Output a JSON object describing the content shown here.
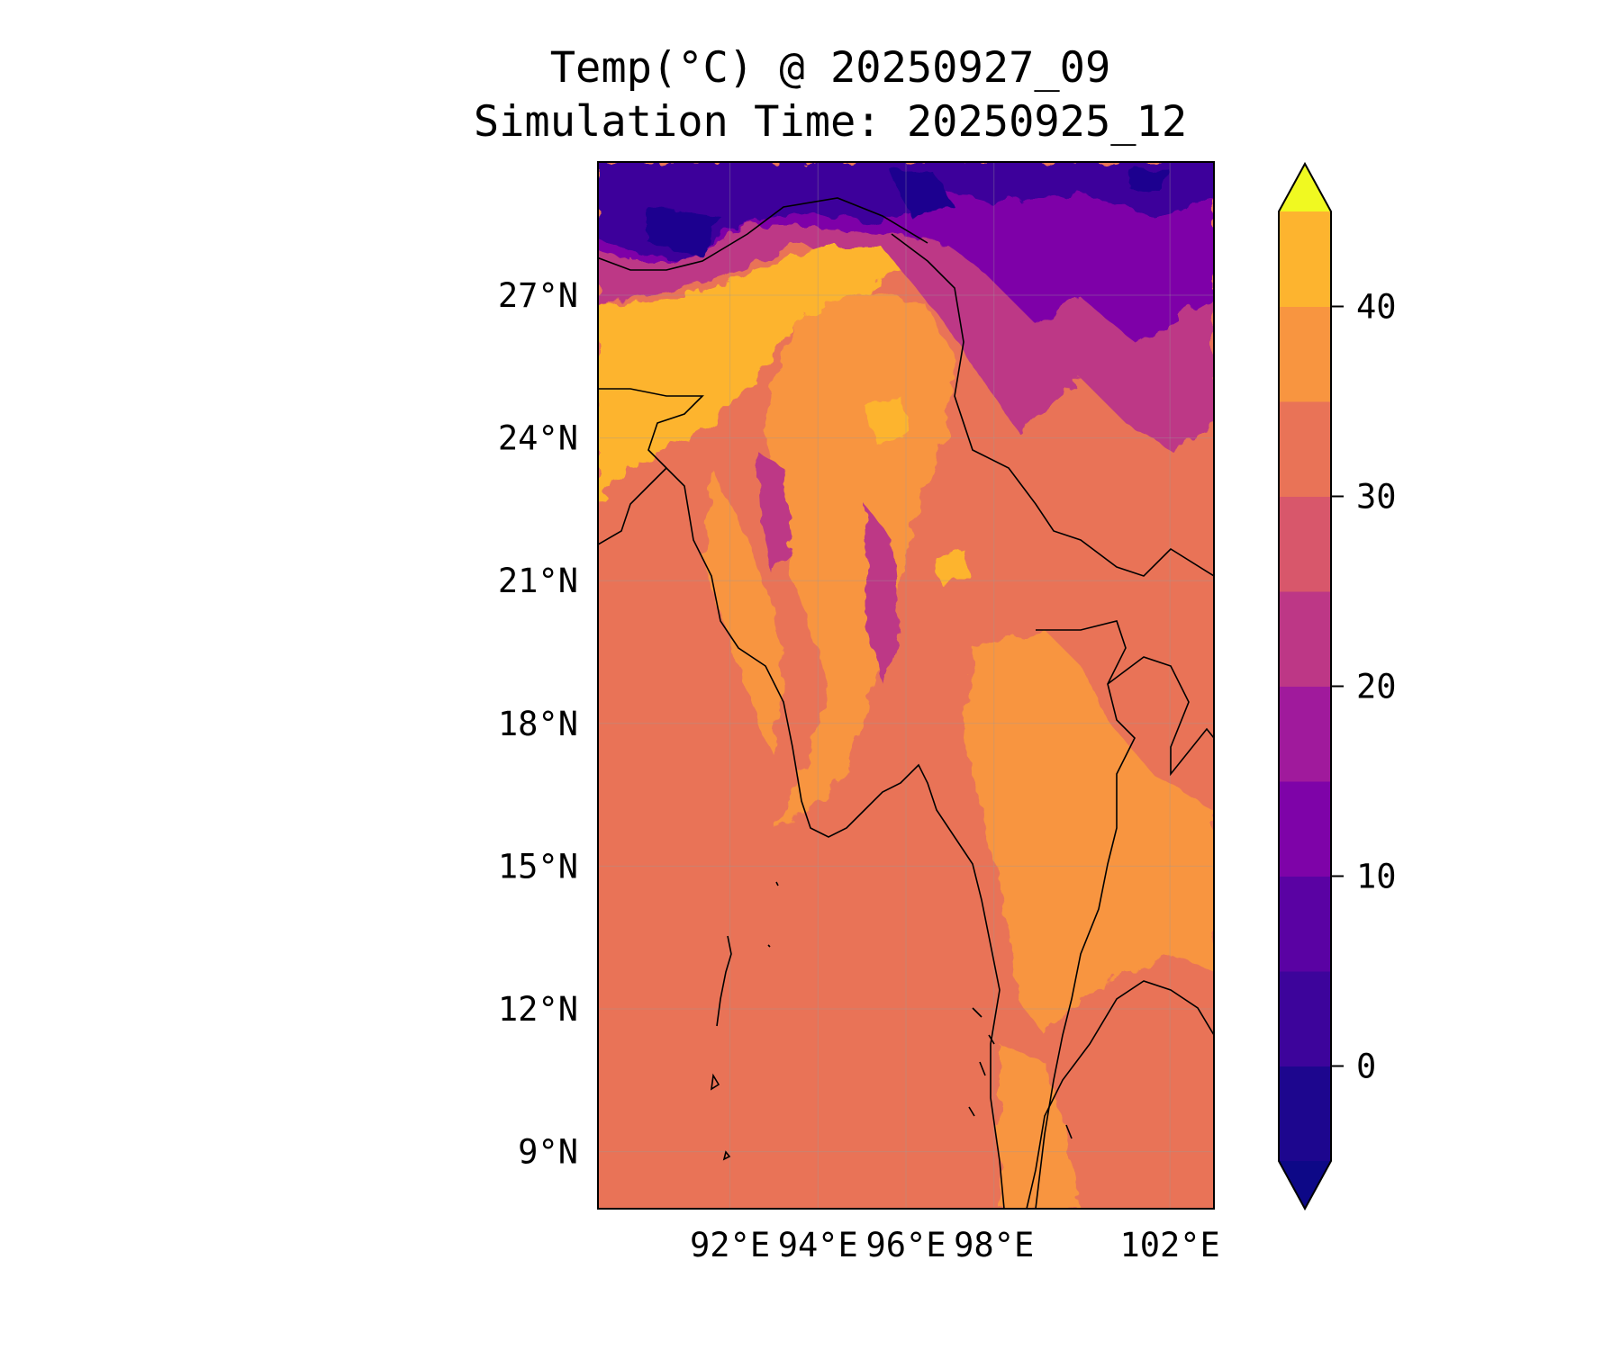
{
  "figure": {
    "title_line1": "Temp(°C) @ 20250927_09",
    "title_line2": "Simulation Time: 20250925_12"
  },
  "map": {
    "projection": "PlateCarree",
    "lon_range": [
      89.0,
      103.0
    ],
    "lat_range": [
      7.8,
      29.8
    ],
    "lat_ticks": [
      {
        "value": 27,
        "label": "27°N"
      },
      {
        "value": 24,
        "label": "24°N"
      },
      {
        "value": 21,
        "label": "21°N"
      },
      {
        "value": 18,
        "label": "18°N"
      },
      {
        "value": 15,
        "label": "15°N"
      },
      {
        "value": 12,
        "label": "12°N"
      },
      {
        "value": 9,
        "label": "9°N"
      }
    ],
    "lon_ticks": [
      {
        "value": 92,
        "label": "92°E"
      },
      {
        "value": 94,
        "label": "94°E"
      },
      {
        "value": 96,
        "label": "96°E"
      },
      {
        "value": 98,
        "label": "98°E"
      },
      {
        "value": 102,
        "label": "102°E"
      }
    ],
    "gridlines": true,
    "field": "temperature",
    "units": "°C",
    "palette": "plasma",
    "ocean_fill_color": "#e97357",
    "region_colors": {
      "cold_high_terrain": "#3d049b",
      "very_cold_peaks": "#1f068f",
      "cool": "#7e03a8",
      "mild": "#bd3786",
      "warm_25_30": "#e97357",
      "hot_30_35": "#f89540",
      "very_hot_35_40": "#fdb42f"
    }
  },
  "colorbar": {
    "levels": [
      -5,
      0,
      5,
      10,
      15,
      20,
      25,
      30,
      35,
      40,
      45
    ],
    "colors": [
      "#1d068e",
      "#3d049b",
      "#5a02a3",
      "#7e03a8",
      "#a01a9c",
      "#bd3786",
      "#d8576b",
      "#e97357",
      "#f89540",
      "#fdb42f",
      "#f0f921"
    ],
    "extend_min_color": "#0d0887",
    "extend_max_color": "#f0f921",
    "tick_labels": [
      {
        "value": 0,
        "label": "0"
      },
      {
        "value": 10,
        "label": "10"
      },
      {
        "value": 20,
        "label": "20"
      },
      {
        "value": 30,
        "label": "30"
      },
      {
        "value": 40,
        "label": "40"
      }
    ],
    "extend": "both"
  }
}
